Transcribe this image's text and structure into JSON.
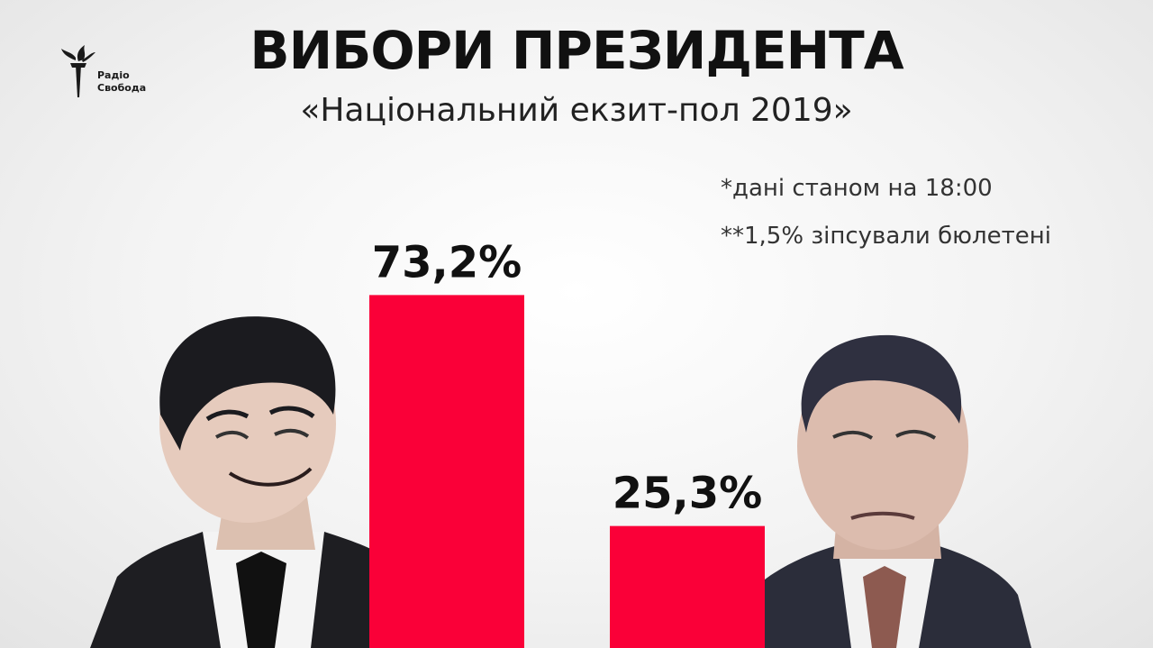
{
  "logo": {
    "line1": "Радіо",
    "line2": "Свобода",
    "name": "radio-svoboda-torch-logo"
  },
  "title": "ВИБОРИ ПРЕЗИДЕНТА",
  "subtitle": "«Національний екзит-пол 2019»",
  "notes": [
    "*дані станом на 18:00",
    "**1,5% зіпсували бюлетені"
  ],
  "colors": {
    "bar": "#fa0038",
    "text": "#111111"
  },
  "portraits": [
    "left-candidate-portrait",
    "right-candidate-portrait"
  ],
  "chart_data": {
    "type": "bar",
    "categories": [
      "",
      ""
    ],
    "values": [
      73.2,
      25.3
    ],
    "value_labels": [
      "73,2%",
      "25,3%"
    ],
    "ylim": [
      0,
      100
    ],
    "grid": false,
    "legend": "none",
    "xlabel": "",
    "ylabel": ""
  }
}
